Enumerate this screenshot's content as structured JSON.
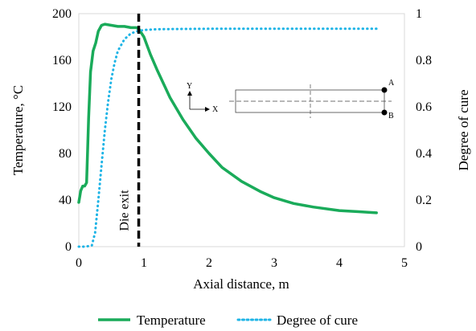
{
  "chart_data": {
    "type": "line",
    "title": "",
    "xlabel": "Axial distance, m",
    "ylabel_left": "Temperature, °C",
    "ylabel_right": "Degree of cure",
    "xlim": [
      0,
      5
    ],
    "ylim_left": [
      0,
      200
    ],
    "ylim_right": [
      0,
      1
    ],
    "x_ticks": [
      "0",
      "1",
      "2",
      "3",
      "4",
      "5"
    ],
    "y_ticks_left": [
      "0",
      "40",
      "80",
      "120",
      "160",
      "200"
    ],
    "y_ticks_right": [
      "0",
      "0.2",
      "0.4",
      "0.6",
      "0.8",
      "1"
    ],
    "grid": false,
    "legend_position": "bottom",
    "die_exit": {
      "x": 0.92,
      "label": "Die exit"
    },
    "series": [
      {
        "name": "Temperature",
        "axis": "left",
        "style": "solid",
        "color": "#1aab5a",
        "x": [
          0.0,
          0.03,
          0.06,
          0.09,
          0.12,
          0.15,
          0.18,
          0.22,
          0.26,
          0.3,
          0.35,
          0.4,
          0.5,
          0.6,
          0.7,
          0.8,
          0.88,
          0.92,
          1.0,
          1.1,
          1.2,
          1.4,
          1.6,
          1.8,
          2.0,
          2.2,
          2.5,
          2.8,
          3.0,
          3.3,
          3.6,
          4.0,
          4.3,
          4.57
        ],
        "values": [
          38,
          48,
          52,
          52,
          55,
          110,
          150,
          168,
          175,
          185,
          190,
          191,
          190,
          189,
          189,
          188,
          188,
          187,
          180,
          165,
          152,
          128,
          109,
          93,
          80,
          68,
          56,
          47,
          42,
          37,
          34,
          31,
          30,
          29
        ]
      },
      {
        "name": "Degree of cure",
        "axis": "right",
        "style": "dotted",
        "color": "#1eb4e6",
        "x": [
          0.0,
          0.1,
          0.2,
          0.25,
          0.3,
          0.35,
          0.4,
          0.45,
          0.5,
          0.55,
          0.6,
          0.7,
          0.8,
          0.9,
          1.0,
          1.2,
          1.5,
          2.0,
          3.0,
          4.0,
          4.57
        ],
        "values": [
          0.0,
          0.0,
          0.005,
          0.06,
          0.2,
          0.35,
          0.5,
          0.62,
          0.72,
          0.79,
          0.84,
          0.89,
          0.915,
          0.925,
          0.93,
          0.933,
          0.934,
          0.935,
          0.935,
          0.935,
          0.935
        ]
      }
    ],
    "inset": {
      "y_label": "Y",
      "x_label": "X",
      "point_a": "A",
      "point_b": "B"
    }
  },
  "colors": {
    "temperature": "#1aab5a",
    "cure": "#1eb4e6",
    "die_exit": "#000000"
  }
}
